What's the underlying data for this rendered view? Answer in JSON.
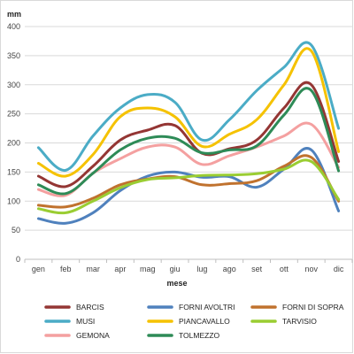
{
  "chart_data": {
    "type": "line",
    "title": "",
    "xlabel": "mese",
    "ylabel": "mm",
    "ylim": [
      0,
      400
    ],
    "yticks": [
      0,
      50,
      100,
      150,
      200,
      250,
      300,
      350,
      400
    ],
    "grid": true,
    "legend_position": "bottom",
    "categories": [
      "gen",
      "feb",
      "mar",
      "apr",
      "mag",
      "giu",
      "lug",
      "ago",
      "set",
      "ott",
      "nov",
      "dic"
    ],
    "series": [
      {
        "name": "BARCIS",
        "color": "#943634",
        "values": [
          143,
          125,
          160,
          205,
          222,
          230,
          182,
          190,
          205,
          260,
          300,
          168
        ]
      },
      {
        "name": "FORNI  AVOLTRI",
        "color": "#4f81bd",
        "values": [
          70,
          62,
          80,
          118,
          143,
          150,
          141,
          142,
          124,
          155,
          188,
          83
        ]
      },
      {
        "name": "FORNI DI SOPRA",
        "color": "#c0722e",
        "values": [
          93,
          90,
          105,
          128,
          138,
          142,
          128,
          130,
          135,
          160,
          175,
          100
        ]
      },
      {
        "name": "MUSI",
        "color": "#4bacc6",
        "values": [
          192,
          153,
          212,
          260,
          283,
          270,
          205,
          240,
          290,
          330,
          368,
          225
        ]
      },
      {
        "name": "PIANCAVALLO",
        "color": "#f5c200",
        "values": [
          165,
          143,
          180,
          245,
          260,
          245,
          194,
          215,
          240,
          300,
          358,
          185
        ]
      },
      {
        "name": "TARVISIO",
        "color": "#9acd32",
        "values": [
          87,
          80,
          100,
          123,
          137,
          140,
          144,
          145,
          147,
          155,
          168,
          103
        ]
      },
      {
        "name": "GEMONA",
        "color": "#f4a0a0",
        "values": [
          120,
          110,
          148,
          173,
          193,
          193,
          163,
          178,
          193,
          212,
          232,
          158
        ]
      },
      {
        "name": "TOLMEZZO",
        "color": "#2e8b57",
        "values": [
          128,
          113,
          148,
          188,
          208,
          208,
          183,
          188,
          195,
          248,
          290,
          152
        ]
      }
    ]
  }
}
